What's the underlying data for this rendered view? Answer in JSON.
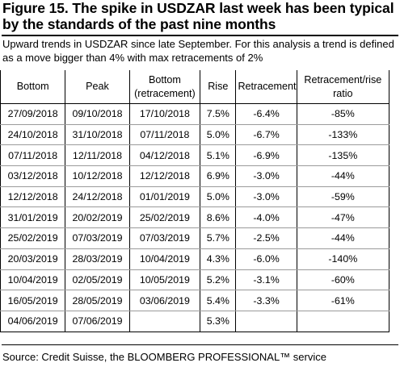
{
  "figure": {
    "title": "Figure 15. The spike in USDZAR last week has been typical by the standards of the past nine months",
    "subtitle": "Upward trends in USDZAR since late September. For this analysis a trend is defined as a move bigger than 4% with max retracements of 2%",
    "source": "Source: Credit Suisse, the BLOOMBERG PROFESSIONAL™ service"
  },
  "table": {
    "headers": {
      "bottom": "Bottom",
      "peak": "Peak",
      "bottom_retracement_line1": "Bottom",
      "bottom_retracement_line2": "(retracement)",
      "rise": "Rise",
      "retracement": "Retracement",
      "ratio_line1": "Retracement/rise",
      "ratio_line2": "ratio"
    },
    "rows": [
      {
        "bottom": "27/09/2018",
        "peak": "09/10/2018",
        "bottom_retracement": "17/10/2018",
        "rise": "7.5%",
        "retracement": "-6.4%",
        "ratio": "-85%"
      },
      {
        "bottom": "24/10/2018",
        "peak": "31/10/2018",
        "bottom_retracement": "07/11/2018",
        "rise": "5.0%",
        "retracement": "-6.7%",
        "ratio": "-133%"
      },
      {
        "bottom": "07/11/2018",
        "peak": "12/11/2018",
        "bottom_retracement": "04/12/2018",
        "rise": "5.1%",
        "retracement": "-6.9%",
        "ratio": "-135%"
      },
      {
        "bottom": "03/12/2018",
        "peak": "10/12/2018",
        "bottom_retracement": "12/12/2018",
        "rise": "6.9%",
        "retracement": "-3.0%",
        "ratio": "-44%"
      },
      {
        "bottom": "12/12/2018",
        "peak": "24/12/2018",
        "bottom_retracement": "01/01/2019",
        "rise": "5.0%",
        "retracement": "-3.0%",
        "ratio": "-59%"
      },
      {
        "bottom": "31/01/2019",
        "peak": "20/02/2019",
        "bottom_retracement": "25/02/2019",
        "rise": "8.6%",
        "retracement": "-4.0%",
        "ratio": "-47%"
      },
      {
        "bottom": "25/02/2019",
        "peak": "07/03/2019",
        "bottom_retracement": "07/03/2019",
        "rise": "5.7%",
        "retracement": "-2.5%",
        "ratio": "-44%"
      },
      {
        "bottom": "20/03/2019",
        "peak": "28/03/2019",
        "bottom_retracement": "10/04/2019",
        "rise": "4.3%",
        "retracement": "-6.0%",
        "ratio": "-140%"
      },
      {
        "bottom": "10/04/2019",
        "peak": "02/05/2019",
        "bottom_retracement": "10/05/2019",
        "rise": "5.2%",
        "retracement": "-3.1%",
        "ratio": "-60%"
      },
      {
        "bottom": "16/05/2019",
        "peak": "28/05/2019",
        "bottom_retracement": "03/06/2019",
        "rise": "5.4%",
        "retracement": "-3.3%",
        "ratio": "-61%"
      },
      {
        "bottom": "04/06/2019",
        "peak": "07/06/2019",
        "bottom_retracement": "",
        "rise": "5.3%",
        "retracement": "",
        "ratio": ""
      }
    ]
  }
}
